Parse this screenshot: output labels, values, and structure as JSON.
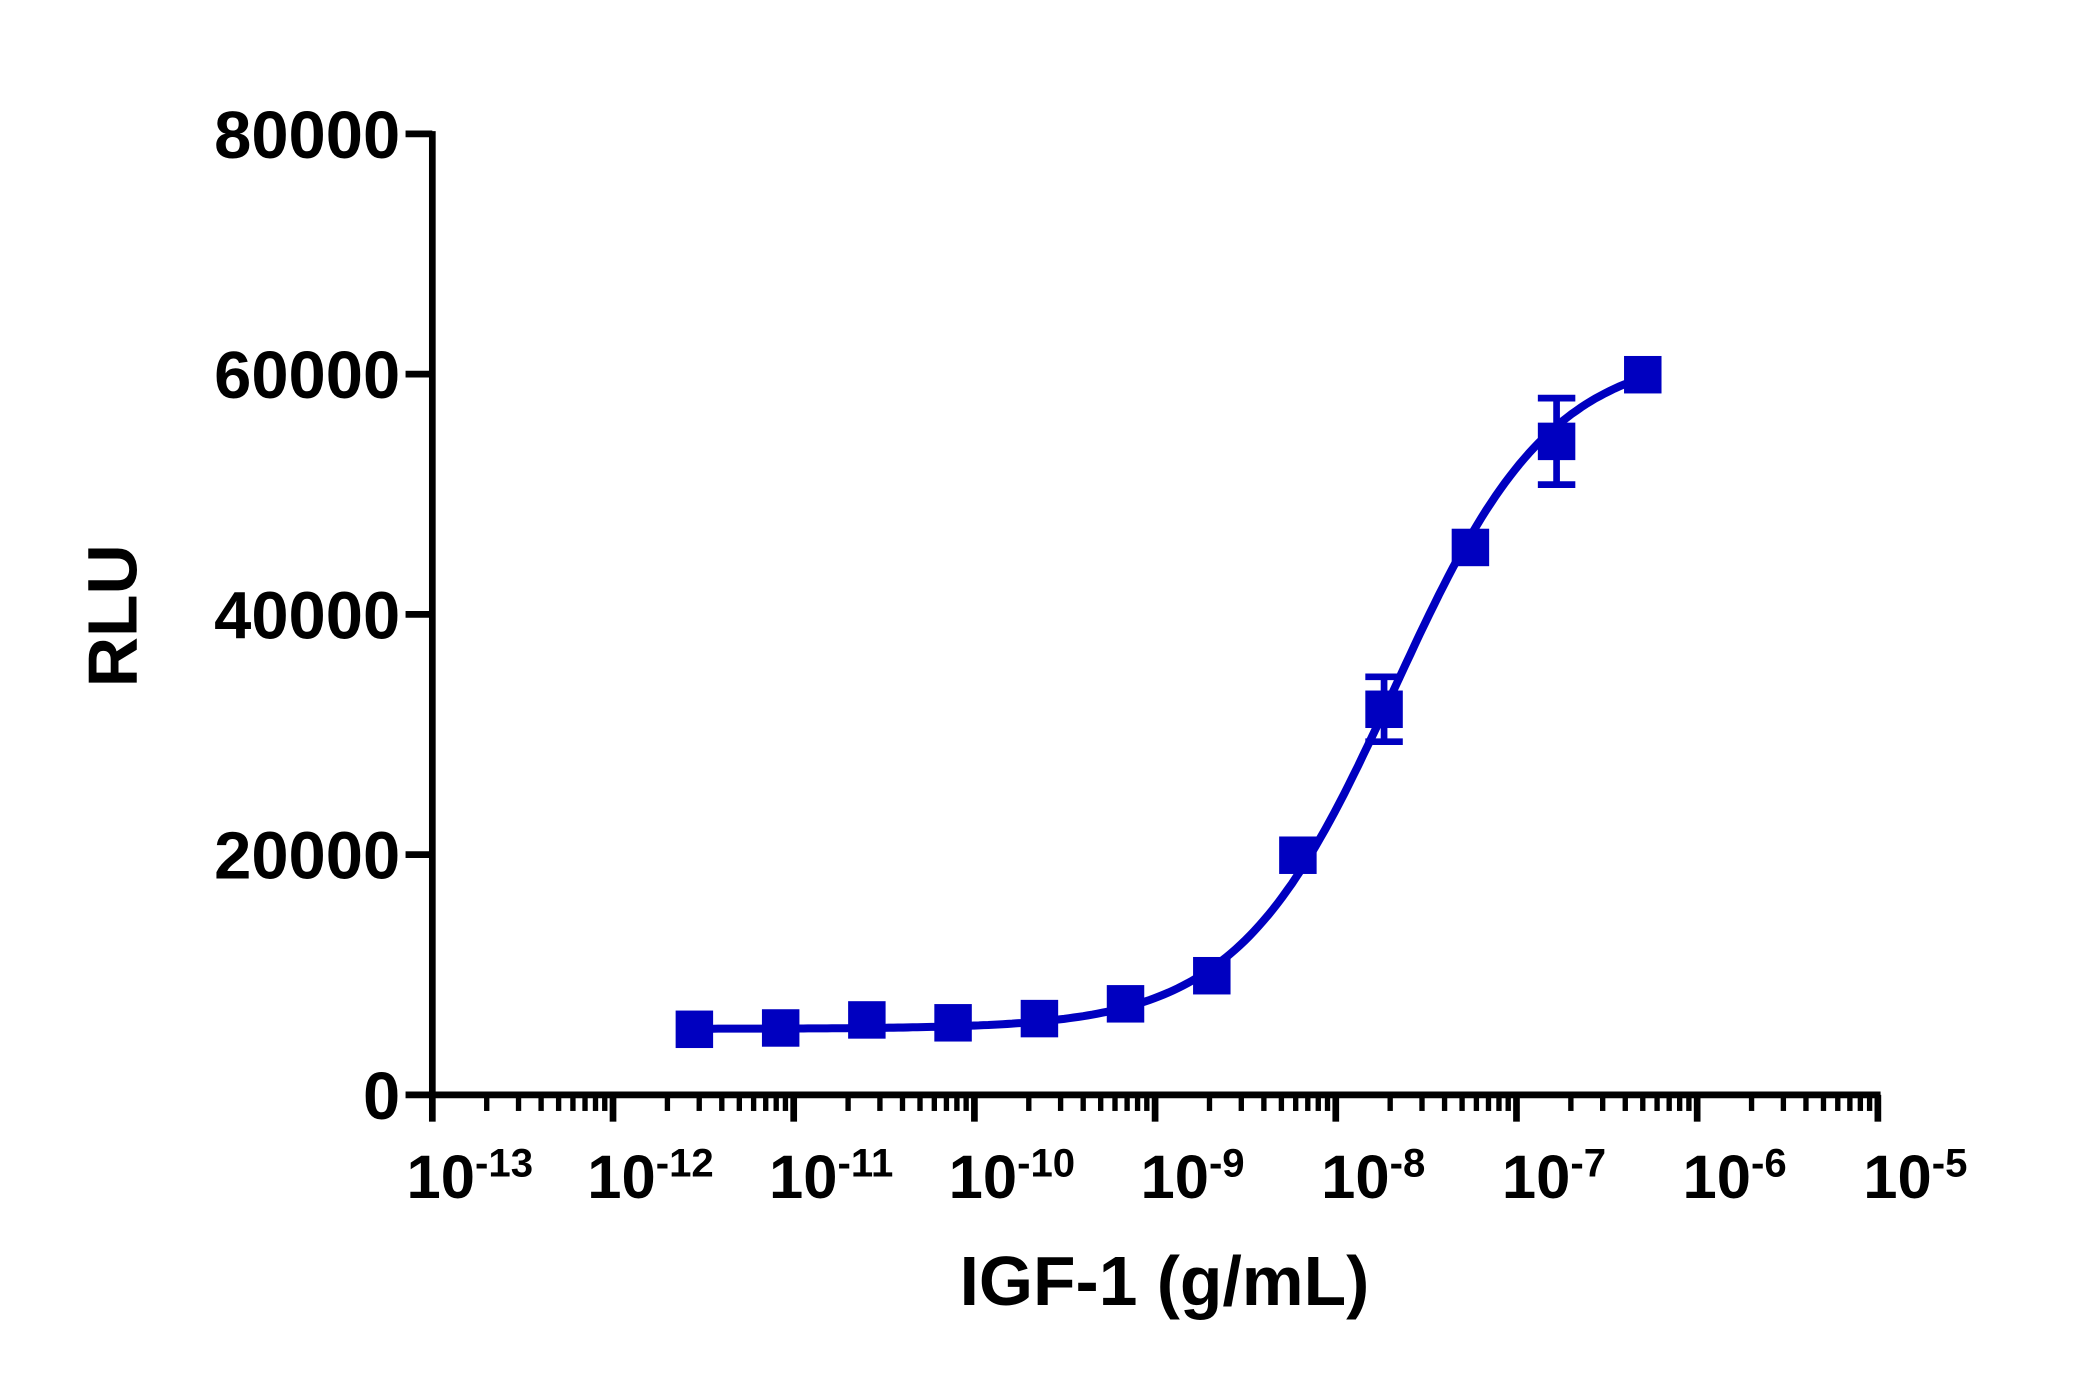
{
  "chart_data": {
    "type": "scatter",
    "title": "",
    "xlabel": "IGF-1 (g/mL)",
    "ylabel": "RLU",
    "xscale": "log",
    "xlim": [
      1e-13,
      1e-05
    ],
    "ylim": [
      0,
      80000
    ],
    "x_ticks": [
      {
        "base": "10",
        "exp": "-13",
        "value": 1e-13
      },
      {
        "base": "10",
        "exp": "-12",
        "value": 1e-12
      },
      {
        "base": "10",
        "exp": "-11",
        "value": 1e-11
      },
      {
        "base": "10",
        "exp": "-10",
        "value": 1e-10
      },
      {
        "base": "10",
        "exp": "-9",
        "value": 1e-09
      },
      {
        "base": "10",
        "exp": "-8",
        "value": 1e-08
      },
      {
        "base": "10",
        "exp": "-7",
        "value": 1e-07
      },
      {
        "base": "10",
        "exp": "-6",
        "value": 1e-06
      },
      {
        "base": "10",
        "exp": "-5",
        "value": 1e-05
      }
    ],
    "y_ticks": [
      "0",
      "20000",
      "40000",
      "60000",
      "80000"
    ],
    "grid": false,
    "color": "#0000C0",
    "marker": "square",
    "series": [
      {
        "x": [
          2.82e-12,
          8.47e-12,
          2.54e-11,
          7.62e-11,
          2.29e-10,
          6.86e-10,
          2.06e-09,
          6.17e-09,
          1.85e-08,
          5.56e-08,
          1.667e-07,
          5e-07
        ],
        "y": [
          5460,
          5570,
          6240,
          6000,
          6350,
          7580,
          9920,
          19950,
          32100,
          45570,
          54400,
          59950
        ],
        "error": [
          0,
          0,
          0,
          0,
          0,
          0,
          0,
          0,
          2700,
          0,
          3600,
          0
        ]
      }
    ],
    "fit": {
      "model": "4PL",
      "bottom": 5500,
      "top": 62000,
      "ec50": 2.1e-08,
      "hill": 1.0
    }
  }
}
